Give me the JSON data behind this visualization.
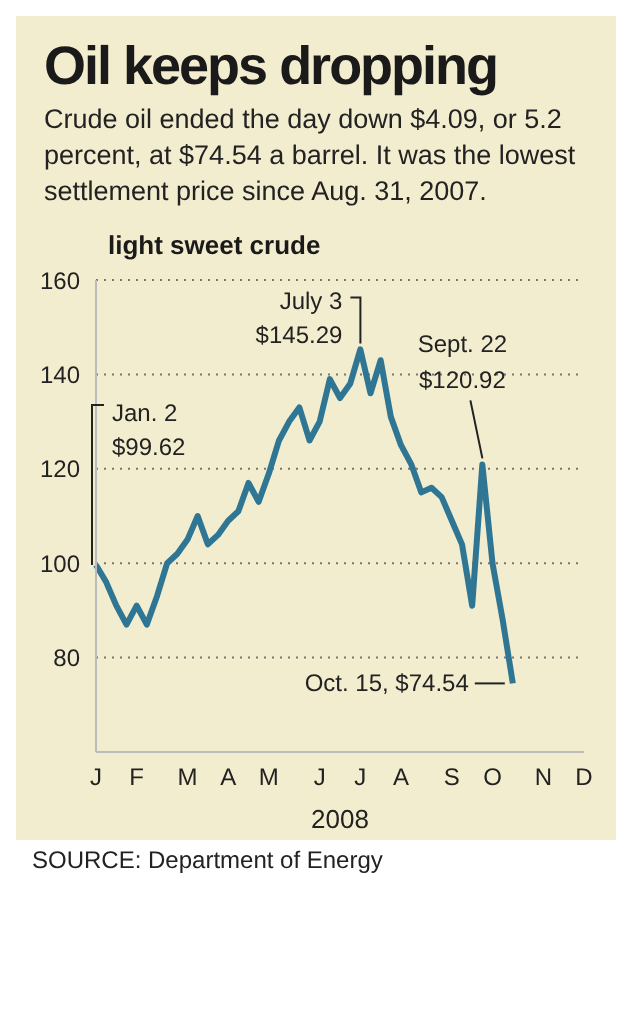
{
  "chart_data": {
    "type": "line",
    "title": "Oil keeps dropping",
    "subtitle": "Crude oil ended the day down $4.09, or 5.2 percent, at $74.54 a barrel. It was the lowest settlement price since Aug. 31, 2007.",
    "ylabel": "light sweet crude",
    "xlabel": "2008",
    "categories": [
      "J",
      null,
      null,
      null,
      "F",
      null,
      null,
      null,
      null,
      "M",
      null,
      null,
      null,
      "A",
      null,
      null,
      null,
      "M",
      null,
      null,
      null,
      null,
      "J",
      null,
      null,
      null,
      "J",
      null,
      null,
      null,
      "A",
      null,
      null,
      null,
      null,
      "S",
      null,
      null,
      null,
      "O",
      null,
      null,
      null,
      null,
      "N",
      null,
      null,
      null,
      "D"
    ],
    "series": [
      {
        "color": "#2f7694",
        "values": [
          99.62,
          96,
          91,
          87,
          91,
          87,
          93,
          100,
          102,
          105,
          110,
          104,
          106,
          109,
          111,
          117,
          113,
          119,
          126,
          130,
          133,
          126,
          130,
          139,
          135,
          138,
          145.29,
          136,
          143,
          131,
          125,
          121,
          115,
          116,
          114,
          109,
          104,
          91,
          120.92,
          100,
          88,
          74.54,
          null,
          null,
          null,
          null,
          null,
          null,
          null
        ]
      }
    ],
    "ylim": [
      60,
      160
    ],
    "yticks": [
      80,
      100,
      120,
      140,
      160
    ],
    "grid": "y",
    "annotations": [
      "Jan. 2\n$99.62",
      "July 3\n$145.29",
      "Sept. 22\n$120.92",
      "Oct. 15, $74.54",
      "SOURCE: Department of Energy"
    ]
  }
}
